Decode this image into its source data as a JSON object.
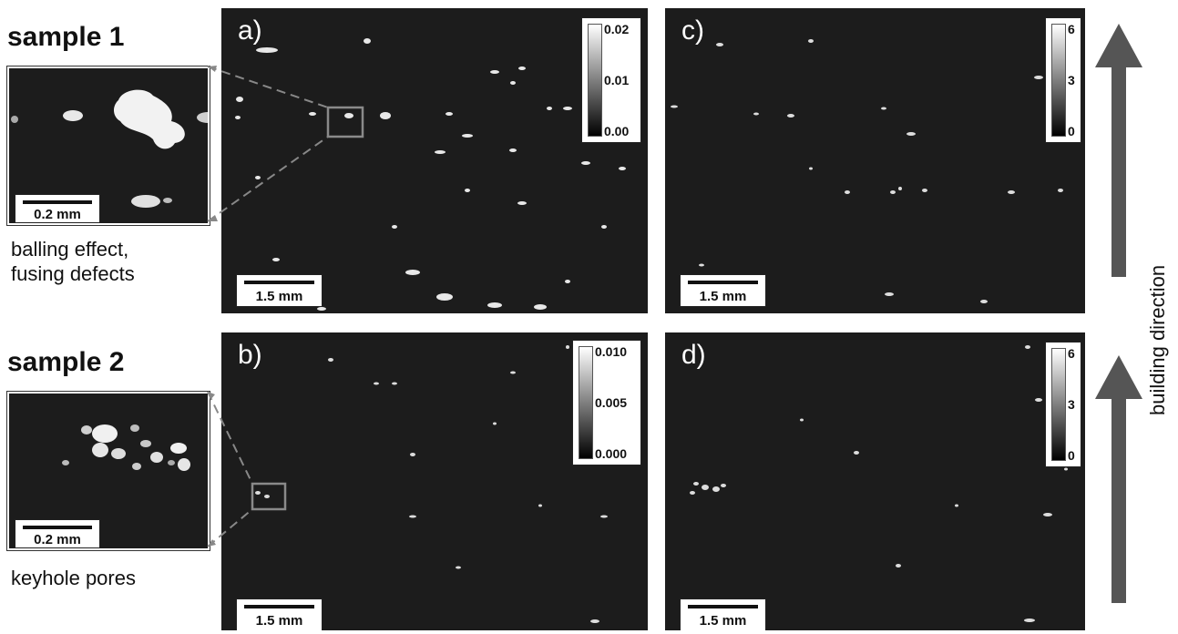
{
  "sample1": {
    "title": "sample 1",
    "caption_line1": "balling effect,",
    "caption_line2": "fusing defects",
    "inset_scale": "0.2 mm"
  },
  "sample2": {
    "title": "sample 2",
    "caption": "keyhole pores",
    "inset_scale": "0.2 mm"
  },
  "panels": {
    "a": {
      "label": "a)",
      "scale": "1.5 mm",
      "cbar_ticks": [
        "0.02",
        "0.01",
        "0.00"
      ]
    },
    "b": {
      "label": "b)",
      "scale": "1.5 mm",
      "cbar_ticks": [
        "0.010",
        "0.005",
        "0.000"
      ]
    },
    "c": {
      "label": "c)",
      "scale": "1.5 mm",
      "cbar_ticks": [
        "6",
        "3",
        "0"
      ]
    },
    "d": {
      "label": "d)",
      "scale": "1.5 mm",
      "cbar_ticks": [
        "6",
        "3",
        "0"
      ]
    }
  },
  "building_direction": "building direction",
  "colors": {
    "background": "#1c1c1c",
    "arrow": "#555555",
    "dashed": "#888888"
  }
}
